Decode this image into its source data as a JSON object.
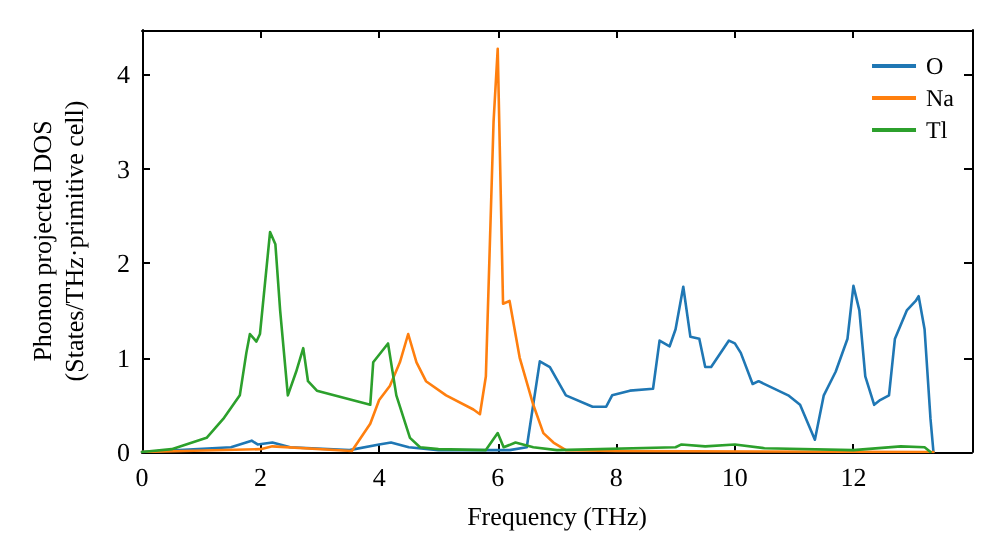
{
  "chart_data": {
    "type": "line",
    "xlabel": "Frequency (THz)",
    "ylabel": "Phonon projected DOS\n(States/THz·primitive cell)",
    "xlim": [
      0,
      14
    ],
    "ylim": [
      0,
      4.47
    ],
    "xticks": [
      0,
      2,
      4,
      6,
      8,
      10,
      12
    ],
    "yticks": [
      0,
      1,
      2,
      3,
      4
    ],
    "grid": false,
    "legend": "top right",
    "marker": "none",
    "line_style": "solid",
    "series": [
      {
        "name": "O",
        "color": "#1f77b4",
        "x": [
          0,
          1.5,
          1.85,
          1.95,
          2.2,
          2.5,
          3.5,
          4.0,
          4.2,
          4.5,
          5.0,
          6.2,
          6.49,
          6.71,
          6.88,
          7.15,
          7.6,
          7.83,
          7.93,
          8.23,
          8.62,
          8.73,
          8.9,
          9.0,
          9.13,
          9.25,
          9.4,
          9.5,
          9.6,
          9.9,
          10.0,
          10.1,
          10.3,
          10.4,
          10.9,
          11.1,
          11.35,
          11.5,
          11.7,
          11.9,
          12.0,
          12.1,
          12.2,
          12.35,
          12.45,
          12.6,
          12.7,
          12.9,
          13.05,
          13.1,
          13.2,
          13.3,
          13.35
        ],
        "values": [
          0,
          0.05,
          0.12,
          0.08,
          0.1,
          0.05,
          0.02,
          0.08,
          0.1,
          0.05,
          0.02,
          0.02,
          0.05,
          0.96,
          0.9,
          0.6,
          0.48,
          0.48,
          0.6,
          0.65,
          0.67,
          1.18,
          1.12,
          1.3,
          1.75,
          1.22,
          1.2,
          0.9,
          0.9,
          1.18,
          1.15,
          1.05,
          0.72,
          0.75,
          0.6,
          0.5,
          0.13,
          0.6,
          0.85,
          1.2,
          1.76,
          1.5,
          0.8,
          0.5,
          0.55,
          0.6,
          1.2,
          1.5,
          1.6,
          1.65,
          1.3,
          0.35,
          0
        ]
      },
      {
        "name": "Na",
        "color": "#ff7f0e",
        "x": [
          0,
          2,
          2.2,
          3.54,
          3.85,
          4.0,
          4.18,
          4.35,
          4.49,
          4.63,
          4.79,
          5.13,
          5.59,
          5.7,
          5.8,
          5.93,
          6.0,
          6.09,
          6.2,
          6.37,
          6.6,
          6.77,
          6.94,
          7.15,
          8,
          13.35
        ],
        "values": [
          0,
          0.03,
          0.06,
          0.01,
          0.3,
          0.55,
          0.7,
          0.95,
          1.25,
          0.95,
          0.75,
          0.6,
          0.45,
          0.4,
          0.8,
          3.5,
          4.27,
          1.57,
          1.6,
          1.0,
          0.5,
          0.2,
          0.1,
          0.02,
          0.01,
          0
        ]
      },
      {
        "name": "Tl",
        "color": "#2ca02c",
        "x": [
          0,
          0.5,
          1.09,
          1.37,
          1.65,
          1.76,
          1.82,
          1.93,
          1.99,
          2.16,
          2.25,
          2.33,
          2.46,
          2.6,
          2.72,
          2.8,
          2.95,
          3.85,
          3.9,
          4.15,
          4.29,
          4.52,
          4.69,
          5.0,
          5.8,
          6.0,
          6.1,
          6.3,
          6.6,
          7,
          9,
          9.1,
          9.5,
          10,
          10.5,
          12,
          12.8,
          13.2,
          13.3
        ],
        "values": [
          0,
          0.03,
          0.15,
          0.35,
          0.6,
          1.05,
          1.25,
          1.17,
          1.25,
          2.33,
          2.2,
          1.5,
          0.6,
          0.85,
          1.1,
          0.75,
          0.65,
          0.5,
          0.95,
          1.15,
          0.6,
          0.15,
          0.05,
          0.03,
          0.02,
          0.2,
          0.05,
          0.1,
          0.05,
          0.02,
          0.05,
          0.08,
          0.06,
          0.08,
          0.04,
          0.02,
          0.06,
          0.05,
          0
        ]
      }
    ]
  }
}
